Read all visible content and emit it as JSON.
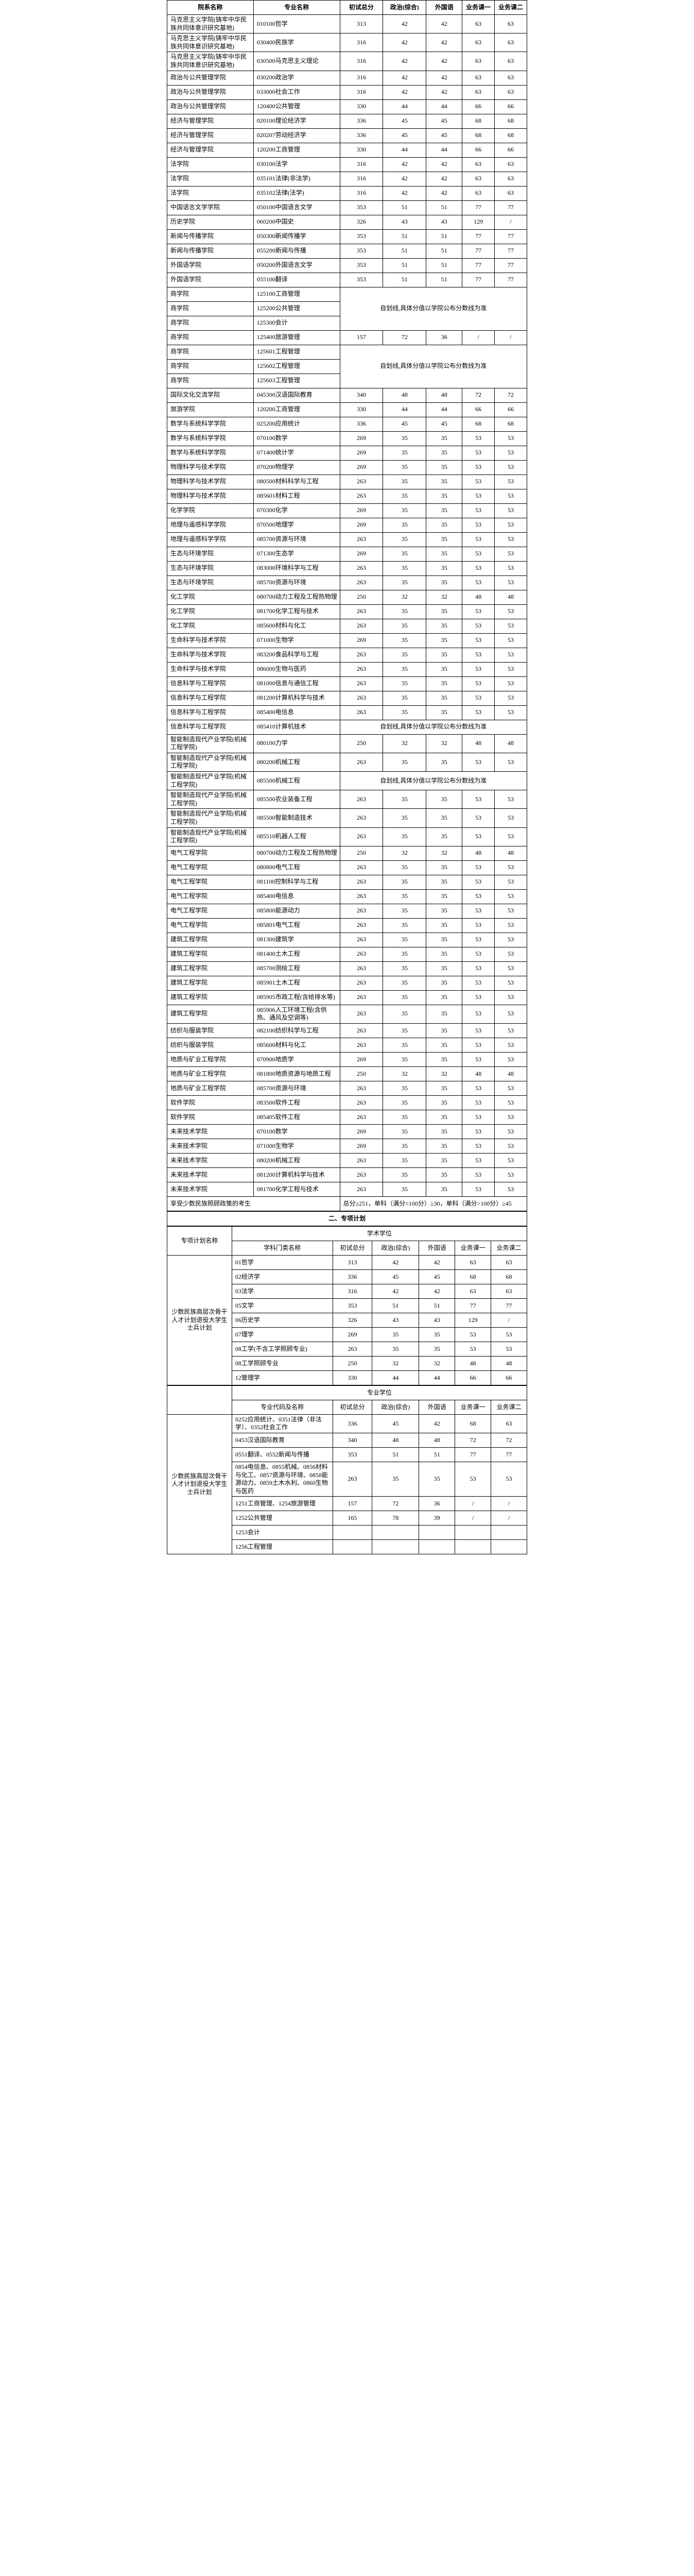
{
  "headers": {
    "dept": "院系名称",
    "major": "专业名称",
    "total": "初试总分",
    "pol": "政治(综合)",
    "fl": "外国语",
    "b1": "业务课一",
    "b2": "业务课二"
  },
  "rows": [
    {
      "dept": "马克思主义学院(铸牢中华民族共同体意识研究基地)",
      "major": "010100哲学",
      "t": 313,
      "p": 42,
      "f": 42,
      "b1": 63,
      "b2": 63
    },
    {
      "dept": "马克思主义学院(铸牢中华民族共同体意识研究基地)",
      "major": "030400民族学",
      "t": 316,
      "p": 42,
      "f": 42,
      "b1": 63,
      "b2": 63
    },
    {
      "dept": "马克思主义学院(铸牢中华民族共同体意识研究基地)",
      "major": "030500马克思主义理论",
      "t": 316,
      "p": 42,
      "f": 42,
      "b1": 63,
      "b2": 63
    },
    {
      "dept": "政治与公共管理学院",
      "major": "030200政治学",
      "t": 316,
      "p": 42,
      "f": 42,
      "b1": 63,
      "b2": 63
    },
    {
      "dept": "政治与公共管理学院",
      "major": "033000社会工作",
      "t": 316,
      "p": 42,
      "f": 42,
      "b1": 63,
      "b2": 63
    },
    {
      "dept": "政治与公共管理学院",
      "major": "120400公共管理",
      "t": 330,
      "p": 44,
      "f": 44,
      "b1": 66,
      "b2": 66
    },
    {
      "dept": "经济与管理学院",
      "major": "020100理论经济学",
      "t": 336,
      "p": 45,
      "f": 45,
      "b1": 68,
      "b2": 68
    },
    {
      "dept": "经济与管理学院",
      "major": "020207劳动经济学",
      "t": 336,
      "p": 45,
      "f": 45,
      "b1": 68,
      "b2": 68
    },
    {
      "dept": "经济与管理学院",
      "major": "120200工商管理",
      "t": 330,
      "p": 44,
      "f": 44,
      "b1": 66,
      "b2": 66
    },
    {
      "dept": "法学院",
      "major": "030100法学",
      "t": 316,
      "p": 42,
      "f": 42,
      "b1": 63,
      "b2": 63
    },
    {
      "dept": "法学院",
      "major": "035101法律(非法学)",
      "t": 316,
      "p": 42,
      "f": 42,
      "b1": 63,
      "b2": 63
    },
    {
      "dept": "法学院",
      "major": "035102法律(法学)",
      "t": 316,
      "p": 42,
      "f": 42,
      "b1": 63,
      "b2": 63
    },
    {
      "dept": "中国语言文学学院",
      "major": "050100中国语言文学",
      "t": 353,
      "p": 51,
      "f": 51,
      "b1": 77,
      "b2": 77
    },
    {
      "dept": "历史学院",
      "major": "060200中国史",
      "t": 326,
      "p": 43,
      "f": 43,
      "b1": 129,
      "b2": "/"
    },
    {
      "dept": "新闻与传播学院",
      "major": "050300新闻传播学",
      "t": 353,
      "p": 51,
      "f": 51,
      "b1": 77,
      "b2": 77
    },
    {
      "dept": "新闻与传播学院",
      "major": "055200新闻与传播",
      "t": 353,
      "p": 51,
      "f": 51,
      "b1": 77,
      "b2": 77
    },
    {
      "dept": "外国语学院",
      "major": "050200外国语言文学",
      "t": 353,
      "p": 51,
      "f": 51,
      "b1": 77,
      "b2": 77
    },
    {
      "dept": "外国语学院",
      "major": "055100翻译",
      "t": 353,
      "p": 51,
      "f": 51,
      "b1": 77,
      "b2": 77
    },
    {
      "dept": "商学院",
      "major": "125100工商管理",
      "note": true
    },
    {
      "dept": "商学院",
      "major": "125200公共管理",
      "note": true,
      "noteText": "自划线,具体分值以学院公布分数线为准"
    },
    {
      "dept": "商学院",
      "major": "125300会计",
      "note": true
    },
    {
      "dept": "商学院",
      "major": "125400旅游管理",
      "t": 157,
      "p": 72,
      "f": 36,
      "b1": "/",
      "b2": "/"
    },
    {
      "dept": "商学院",
      "major": "125601工程管理",
      "note": true
    },
    {
      "dept": "商学院",
      "major": "125602工程管理",
      "note": true,
      "noteText": "自划线,具体分值以学院公布分数线为准"
    },
    {
      "dept": "商学院",
      "major": "125603工程管理",
      "note": true
    },
    {
      "dept": "国际文化交流学院",
      "major": "045300汉语国际教育",
      "t": 340,
      "p": 48,
      "f": 48,
      "b1": 72,
      "b2": 72
    },
    {
      "dept": "旅游学院",
      "major": "120200工商管理",
      "t": 330,
      "p": 44,
      "f": 44,
      "b1": 66,
      "b2": 66
    },
    {
      "dept": "数学与系统科学学院",
      "major": "025200应用统计",
      "t": 336,
      "p": 45,
      "f": 45,
      "b1": 68,
      "b2": 68
    },
    {
      "dept": "数学与系统科学学院",
      "major": "070100数学",
      "t": 269,
      "p": 35,
      "f": 35,
      "b1": 53,
      "b2": 53
    },
    {
      "dept": "数学与系统科学学院",
      "major": "071400统计学",
      "t": 269,
      "p": 35,
      "f": 35,
      "b1": 53,
      "b2": 53
    },
    {
      "dept": "物理科学与技术学院",
      "major": "070200物理学",
      "t": 269,
      "p": 35,
      "f": 35,
      "b1": 53,
      "b2": 53
    },
    {
      "dept": "物理科学与技术学院",
      "major": "080500材料科学与工程",
      "t": 263,
      "p": 35,
      "f": 35,
      "b1": 53,
      "b2": 53
    },
    {
      "dept": "物理科学与技术学院",
      "major": "085601材料工程",
      "t": 263,
      "p": 35,
      "f": 35,
      "b1": 53,
      "b2": 53
    },
    {
      "dept": "化学学院",
      "major": "070300化学",
      "t": 269,
      "p": 35,
      "f": 35,
      "b1": 53,
      "b2": 53
    },
    {
      "dept": "地理与遥感科学学院",
      "major": "070500地理学",
      "t": 269,
      "p": 35,
      "f": 35,
      "b1": 53,
      "b2": 53
    },
    {
      "dept": "地理与遥感科学学院",
      "major": "085700资源与环境",
      "t": 263,
      "p": 35,
      "f": 35,
      "b1": 53,
      "b2": 53
    },
    {
      "dept": "生态与环境学院",
      "major": "071300生态学",
      "t": 269,
      "p": 35,
      "f": 35,
      "b1": 53,
      "b2": 53
    },
    {
      "dept": "生态与环境学院",
      "major": "083000环境科学与工程",
      "t": 263,
      "p": 35,
      "f": 35,
      "b1": 53,
      "b2": 53
    },
    {
      "dept": "生态与环境学院",
      "major": "085700资源与环境",
      "t": 263,
      "p": 35,
      "f": 35,
      "b1": 53,
      "b2": 53
    },
    {
      "dept": "化工学院",
      "major": "080700动力工程及工程热物理",
      "t": 250,
      "p": 32,
      "f": 32,
      "b1": 48,
      "b2": 48
    },
    {
      "dept": "化工学院",
      "major": "081700化学工程与技术",
      "t": 263,
      "p": 35,
      "f": 35,
      "b1": 53,
      "b2": 53
    },
    {
      "dept": "化工学院",
      "major": "085600材料与化工",
      "t": 263,
      "p": 35,
      "f": 35,
      "b1": 53,
      "b2": 53
    },
    {
      "dept": "生命科学与技术学院",
      "major": "071000生物学",
      "t": 269,
      "p": 35,
      "f": 35,
      "b1": 53,
      "b2": 53
    },
    {
      "dept": "生命科学与技术学院",
      "major": "083200食品科学与工程",
      "t": 263,
      "p": 35,
      "f": 35,
      "b1": 53,
      "b2": 53
    },
    {
      "dept": "生命科学与技术学院",
      "major": "086000生物与医药",
      "t": 263,
      "p": 35,
      "f": 35,
      "b1": 53,
      "b2": 53
    },
    {
      "dept": "信息科学与工程学院",
      "major": "081000信息与通信工程",
      "t": 263,
      "p": 35,
      "f": 35,
      "b1": 53,
      "b2": 53
    },
    {
      "dept": "信息科学与工程学院",
      "major": "081200计算机科学与技术",
      "t": 263,
      "p": 35,
      "f": 35,
      "b1": 53,
      "b2": 53
    },
    {
      "dept": "信息科学与工程学院",
      "major": "085400电信息",
      "t": 263,
      "p": 35,
      "f": 35,
      "b1": 53,
      "b2": 53
    },
    {
      "dept": "信息科学与工程学院",
      "major": "085410计算机技术",
      "noteText": "自划线,具体分值以学院公布分数线为准",
      "note": true
    },
    {
      "dept": "智能制造现代产业学院(机械工程学院)",
      "major": "080100力学",
      "t": 250,
      "p": 32,
      "f": 32,
      "b1": 48,
      "b2": 48
    },
    {
      "dept": "智能制造现代产业学院(机械工程学院)",
      "major": "080200机械工程",
      "t": 263,
      "p": 35,
      "f": 35,
      "b1": 53,
      "b2": 53
    },
    {
      "dept": "智能制造现代产业学院(机械工程学院)",
      "major": "085500机械工程",
      "noteText": "自划线,具体分值以学院公布分数线为准",
      "note": true
    },
    {
      "dept": "智能制造现代产业学院(机械工程学院)",
      "major": "085500农业装备工程",
      "t": 263,
      "p": 35,
      "f": 35,
      "b1": 53,
      "b2": 53
    },
    {
      "dept": "智能制造现代产业学院(机械工程学院)",
      "major": "085500智能制造技术",
      "t": 263,
      "p": 35,
      "f": 35,
      "b1": 53,
      "b2": 53
    },
    {
      "dept": "智能制造现代产业学院(机械工程学院)",
      "major": "085510机器人工程",
      "t": 263,
      "p": 35,
      "f": 35,
      "b1": 53,
      "b2": 53
    },
    {
      "dept": "电气工程学院",
      "major": "080700动力工程及工程热物理",
      "t": 250,
      "p": 32,
      "f": 32,
      "b1": 48,
      "b2": 48
    },
    {
      "dept": "电气工程学院",
      "major": "080800电气工程",
      "t": 263,
      "p": 35,
      "f": 35,
      "b1": 53,
      "b2": 53
    },
    {
      "dept": "电气工程学院",
      "major": "081100控制科学与工程",
      "t": 263,
      "p": 35,
      "f": 35,
      "b1": 53,
      "b2": 53
    },
    {
      "dept": "电气工程学院",
      "major": "085400电信息",
      "t": 263,
      "p": 35,
      "f": 35,
      "b1": 53,
      "b2": 53
    },
    {
      "dept": "电气工程学院",
      "major": "085800能源动力",
      "t": 263,
      "p": 35,
      "f": 35,
      "b1": 53,
      "b2": 53
    },
    {
      "dept": "电气工程学院",
      "major": "085801电气工程",
      "t": 263,
      "p": 35,
      "f": 35,
      "b1": 53,
      "b2": 53
    },
    {
      "dept": "建筑工程学院",
      "major": "081300建筑学",
      "t": 263,
      "p": 35,
      "f": 35,
      "b1": 53,
      "b2": 53
    },
    {
      "dept": "建筑工程学院",
      "major": "081400土木工程",
      "t": 263,
      "p": 35,
      "f": 35,
      "b1": 53,
      "b2": 53
    },
    {
      "dept": "建筑工程学院",
      "major": "085700测绘工程",
      "t": 263,
      "p": 35,
      "f": 35,
      "b1": 53,
      "b2": 53
    },
    {
      "dept": "建筑工程学院",
      "major": "085901土木工程",
      "t": 263,
      "p": 35,
      "f": 35,
      "b1": 53,
      "b2": 53
    },
    {
      "dept": "建筑工程学院",
      "major": "085905市政工程(含给排水等)",
      "t": 263,
      "p": 35,
      "f": 35,
      "b1": 53,
      "b2": 53
    },
    {
      "dept": "建筑工程学院",
      "major": "085906人工环境工程(含供热、通风及空调等)",
      "t": 263,
      "p": 35,
      "f": 35,
      "b1": 53,
      "b2": 53
    },
    {
      "dept": "纺织与服装学院",
      "major": "082100纺织科学与工程",
      "t": 263,
      "p": 35,
      "f": 35,
      "b1": 53,
      "b2": 53
    },
    {
      "dept": "纺织与服装学院",
      "major": "085600材料与化工",
      "t": 263,
      "p": 35,
      "f": 35,
      "b1": 53,
      "b2": 53
    },
    {
      "dept": "地质与矿业工程学院",
      "major": "070900地质学",
      "t": 269,
      "p": 35,
      "f": 35,
      "b1": 53,
      "b2": 53
    },
    {
      "dept": "地质与矿业工程学院",
      "major": "081800地质资源与地质工程",
      "t": 250,
      "p": 32,
      "f": 32,
      "b1": 48,
      "b2": 48
    },
    {
      "dept": "地质与矿业工程学院",
      "major": "085700资源与环境",
      "t": 263,
      "p": 35,
      "f": 35,
      "b1": 53,
      "b2": 53
    },
    {
      "dept": "软件学院",
      "major": "083500软件工程",
      "t": 263,
      "p": 35,
      "f": 35,
      "b1": 53,
      "b2": 53
    },
    {
      "dept": "软件学院",
      "major": "085405软件工程",
      "t": 263,
      "p": 35,
      "f": 35,
      "b1": 53,
      "b2": 53
    },
    {
      "dept": "未来技术学院",
      "major": "070100数学",
      "t": 269,
      "p": 35,
      "f": 35,
      "b1": 53,
      "b2": 53
    },
    {
      "dept": "未来技术学院",
      "major": "071000生物学",
      "t": 269,
      "p": 35,
      "f": 35,
      "b1": 53,
      "b2": 53
    },
    {
      "dept": "未来技术学院",
      "major": "080200机械工程",
      "t": 263,
      "p": 35,
      "f": 35,
      "b1": 53,
      "b2": 53
    },
    {
      "dept": "未来技术学院",
      "major": "081200计算机科学与技术",
      "t": 263,
      "p": 35,
      "f": 35,
      "b1": 53,
      "b2": 53
    },
    {
      "dept": "未来技术学院",
      "major": "081700化学工程与技术",
      "t": 263,
      "p": 35,
      "f": 35,
      "b1": 53,
      "b2": 53
    }
  ],
  "bottomRow": {
    "left": "享受少数民族照顾政策的考生",
    "right": "总分≥251，单科（满分=100分）≥30，单科（满分>100分）≥45"
  },
  "plan2": {
    "title": "二、专项计划",
    "planCol": "专项计划名称",
    "subjCol": "学科门类名称",
    "acad": "学术学位",
    "prof": "专业学位",
    "majorCode": "专业代码及名称",
    "hdr": {
      "t": "初试总分",
      "p": "政治(综合)",
      "f": "外国语",
      "b1": "业务课一",
      "b2": "业务课二"
    },
    "planName": "少数民族高层次骨干人才计划退役大学生士兵计划",
    "academic": [
      {
        "m": "01哲学",
        "t": 313,
        "p": 42,
        "f": 42,
        "b1": 63,
        "b2": 63
      },
      {
        "m": "02经济学",
        "t": 336,
        "p": 45,
        "f": 45,
        "b1": 68,
        "b2": 68
      },
      {
        "m": "03法学",
        "t": 316,
        "p": 42,
        "f": 42,
        "b1": 63,
        "b2": 63
      },
      {
        "m": "05文学",
        "t": 353,
        "p": 51,
        "f": 51,
        "b1": 77,
        "b2": 77
      },
      {
        "m": "06历史学",
        "t": 326,
        "p": 43,
        "f": 43,
        "b1": 129,
        "b2": "/"
      },
      {
        "m": "07理学",
        "t": 269,
        "p": 35,
        "f": 35,
        "b1": 53,
        "b2": 53
      },
      {
        "m": "08工学(不含工学照顾专业)",
        "t": 263,
        "p": 35,
        "f": 35,
        "b1": 53,
        "b2": 53
      },
      {
        "m": "08工学照顾专业",
        "t": 250,
        "p": 32,
        "f": 32,
        "b1": 48,
        "b2": 48
      },
      {
        "m": "12管理学",
        "t": 330,
        "p": 44,
        "f": 44,
        "b1": 66,
        "b2": 66
      }
    ],
    "professional": [
      {
        "m": "0252应用统计、0351法律（非法学）、0352社会工作",
        "t": 336,
        "p": 45,
        "f": 42,
        "b1": 68,
        "b2": 63
      },
      {
        "m": "0453汉语国际教育",
        "t": 340,
        "p": 48,
        "f": 48,
        "b1": 72,
        "b2": 72
      },
      {
        "m": "0551翻译、0552新闻与传播",
        "t": 353,
        "p": 51,
        "f": 51,
        "b1": 77,
        "b2": 77
      },
      {
        "m": "0854电信息、0855机械、0856材料与化工、0857资源与环境、0858能源动力、0859土木水利、0860生物与医药",
        "t": 263,
        "p": 35,
        "f": 35,
        "b1": 53,
        "b2": 53
      },
      {
        "m": "1251工商管理、1254旅游管理",
        "t": 157,
        "p": 72,
        "f": 36,
        "b1": "/",
        "b2": "/"
      },
      {
        "m": "1252公共管理",
        "t": 165,
        "p": 78,
        "f": 39,
        "b1": "/",
        "b2": "/"
      },
      {
        "m": "1253会计",
        "t": "",
        "p": "",
        "f": "",
        "b1": "",
        "b2": ""
      },
      {
        "m": "1256工程管理",
        "t": "",
        "p": "",
        "f": "",
        "b1": "",
        "b2": ""
      }
    ]
  }
}
